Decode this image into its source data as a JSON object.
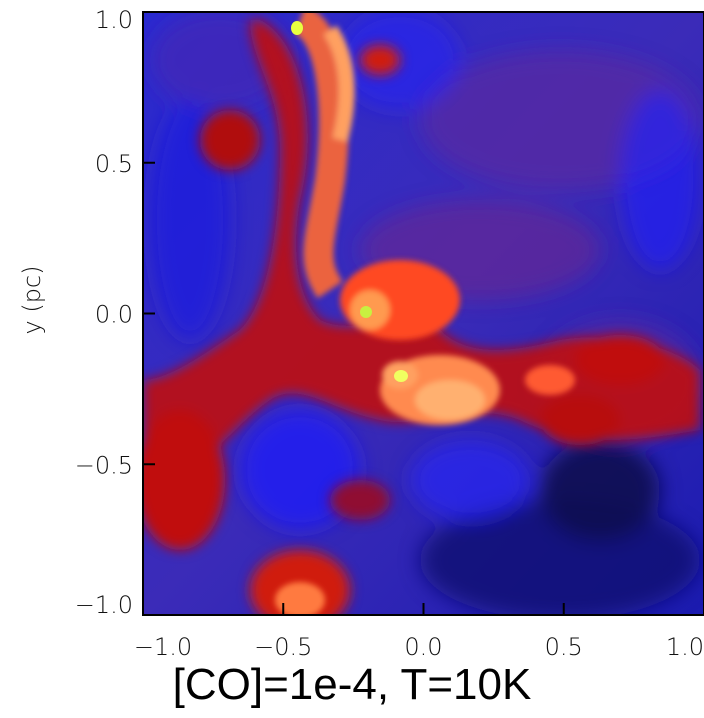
{
  "chart_data": {
    "type": "heatmap",
    "title": "[CO]=1e-4, T=10K",
    "xlabel": "",
    "ylabel": "y (pc)",
    "xlim": [
      -1.0,
      1.0
    ],
    "ylim": [
      -1.0,
      1.0
    ],
    "x_ticks": [
      "−1.0",
      "−0.5",
      "0.0",
      "0.5",
      "1.0"
    ],
    "y_ticks": [
      "1.0",
      "0.5",
      "0.0",
      "−0.5",
      "−1.0"
    ],
    "colormap": [
      "#0a0a3a",
      "#1a1aff",
      "#5a1fa0",
      "#c01010",
      "#ff3a10",
      "#ff9a50",
      "#ffd070",
      "#e8ff40"
    ],
    "grid": false
  }
}
